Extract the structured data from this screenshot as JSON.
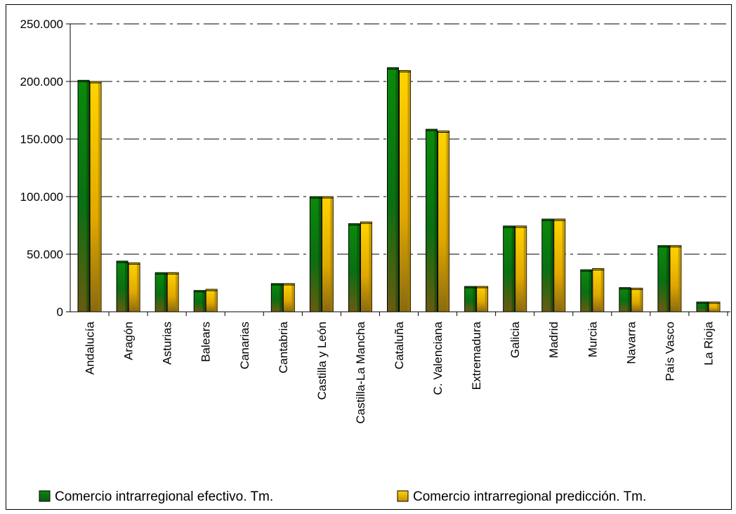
{
  "chart_data": {
    "type": "bar",
    "categories": [
      "Andalucía",
      "Aragón",
      "Asturias",
      "Balears",
      "Canarias",
      "Cantabria",
      "Castilla y León",
      "Castilla-La Mancha",
      "Cataluña",
      "C. Valenciana",
      "Extremadura",
      "Galicia",
      "Madrid",
      "Murcia",
      "Navarra",
      "País Vasco",
      "La Rioja"
    ],
    "series": [
      {
        "name": "Comercio intrarregional efectivo. Tm.",
        "values": [
          201000,
          44000,
          34000,
          18500,
          0,
          24500,
          100000,
          76500,
          212000,
          158500,
          22000,
          74500,
          80500,
          36500,
          21000,
          57500,
          8500
        ],
        "color": "#0a7a0a"
      },
      {
        "name": "Comercio intrarregional predicción. Tm.",
        "values": [
          200000,
          42500,
          34000,
          19500,
          0,
          24500,
          100000,
          78000,
          209500,
          157000,
          22000,
          74500,
          80500,
          37500,
          20500,
          57500,
          8500
        ],
        "color": "#f0c000"
      }
    ],
    "yticks": [
      "0",
      "50.000",
      "100.000",
      "150.000",
      "200.000",
      "250.000"
    ],
    "ylim": [
      0,
      250000
    ],
    "grid": "horizontal dash-dot",
    "legend": "bottom"
  }
}
